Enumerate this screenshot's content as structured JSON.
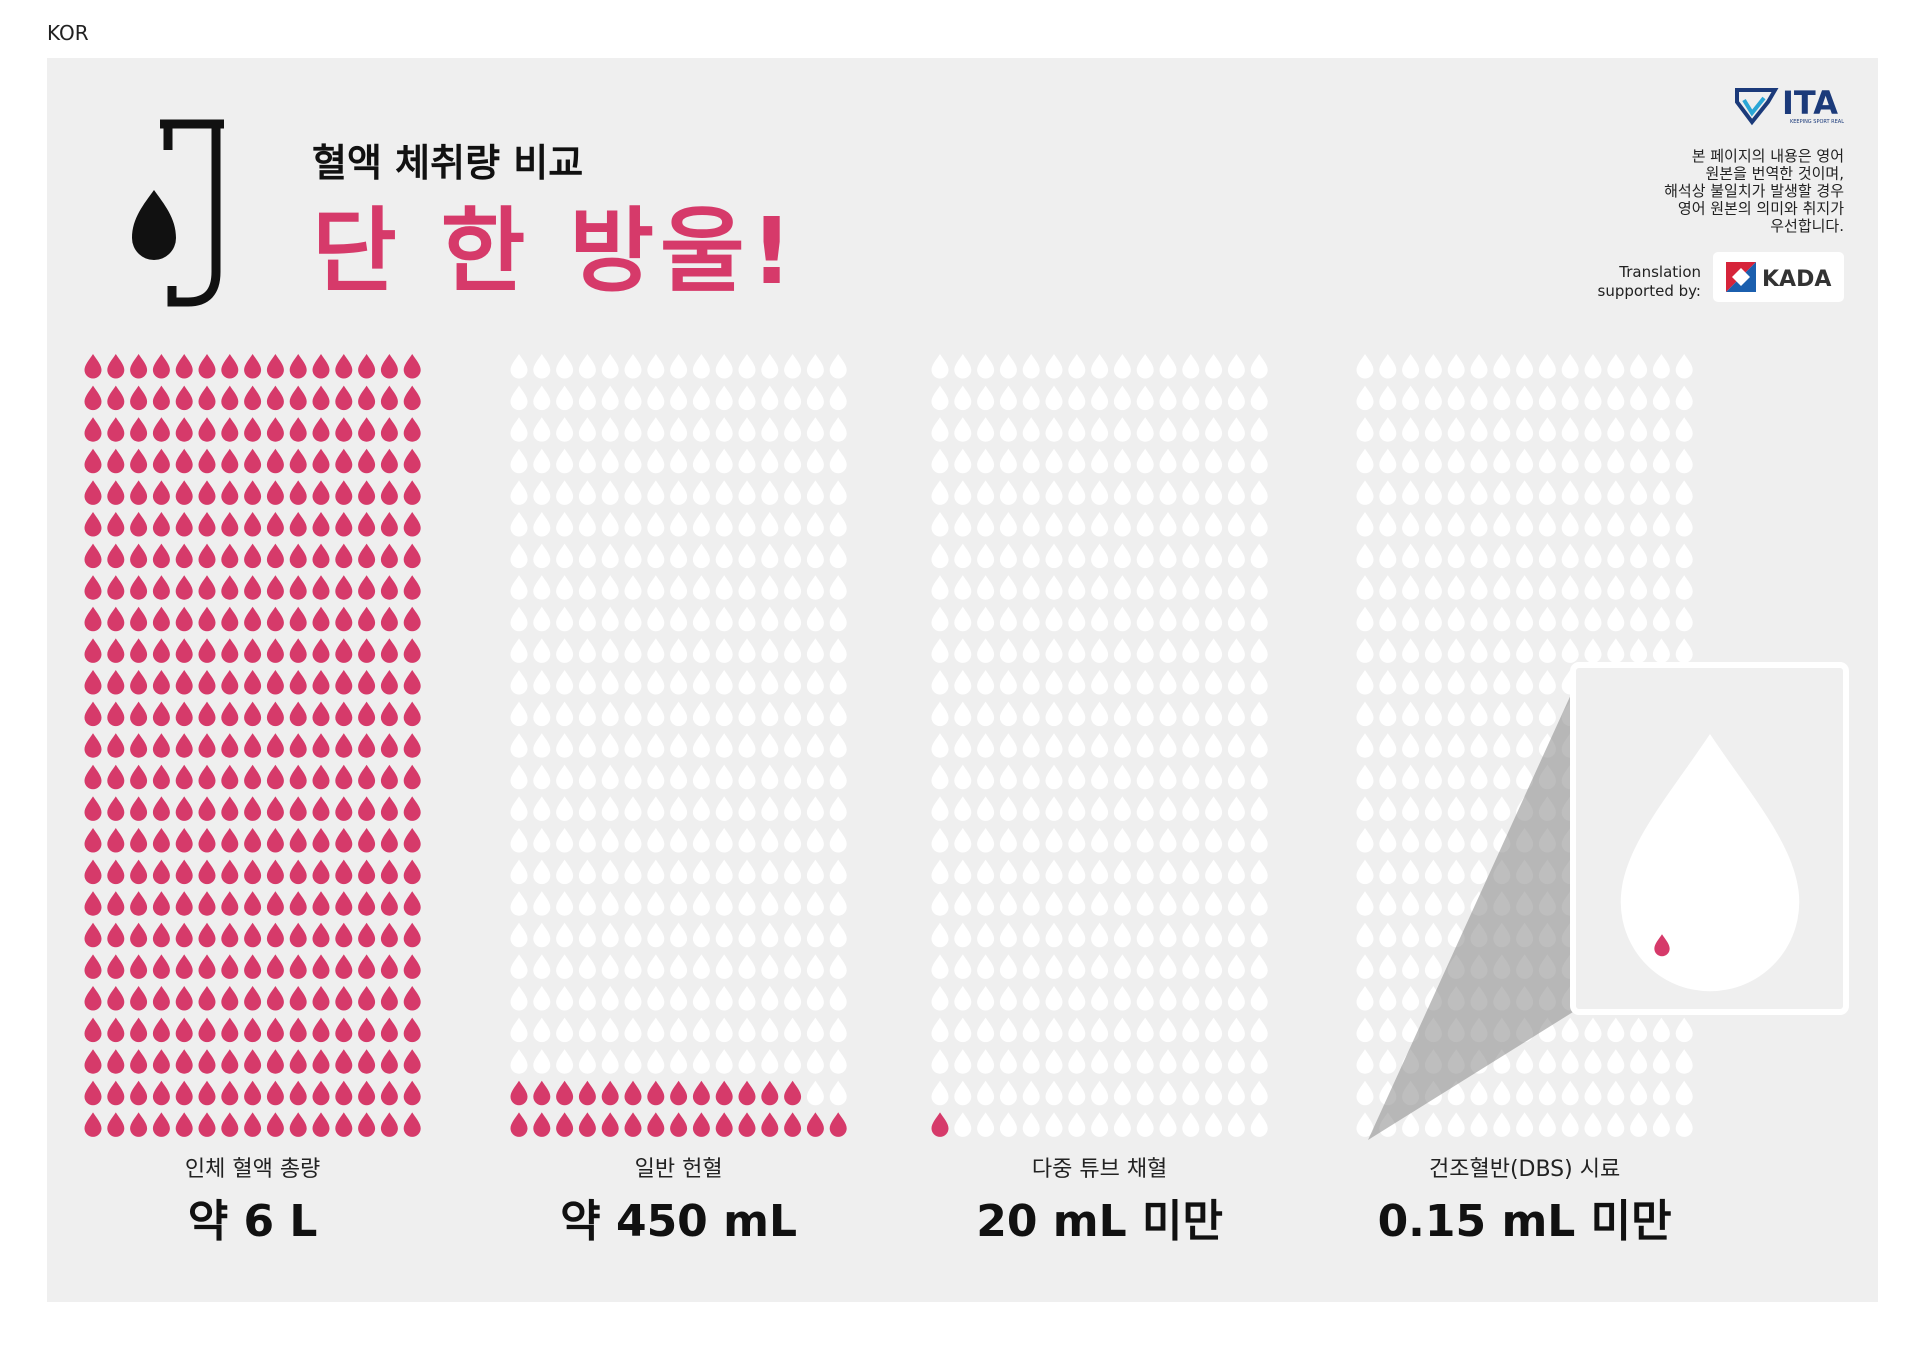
{
  "header": {
    "language": "KOR",
    "subtitle": "혈액 체취량 비교",
    "title": "단 한 방울!",
    "note": [
      "본 페이지의 내용은 영어",
      "원본을 번역한 것이며,",
      "해석상 불일치가 발생할 경우",
      "영어 원본의 의미와 취지가",
      "우선합니다."
    ],
    "translation_credit": [
      "Translation",
      "supported by:"
    ],
    "ita_logo": "ITA",
    "ita_tagline": "KEEPING SPORT REAL",
    "kada_logo": "KADA"
  },
  "drops_per_column": 375,
  "columns": [
    {
      "label": "인체 혈액 총량",
      "amount": "약 6 L",
      "red_drops": 375
    },
    {
      "label": "일반 헌혈",
      "amount": "약 450 mL",
      "red_drops": 28
    },
    {
      "label": "다중 튜브 채혈",
      "amount": "20 mL 미만",
      "red_drops": 1
    },
    {
      "label": "건조혈반(DBS) 시료",
      "amount": "0.15 mL 미만",
      "red_drops": 0
    }
  ]
}
